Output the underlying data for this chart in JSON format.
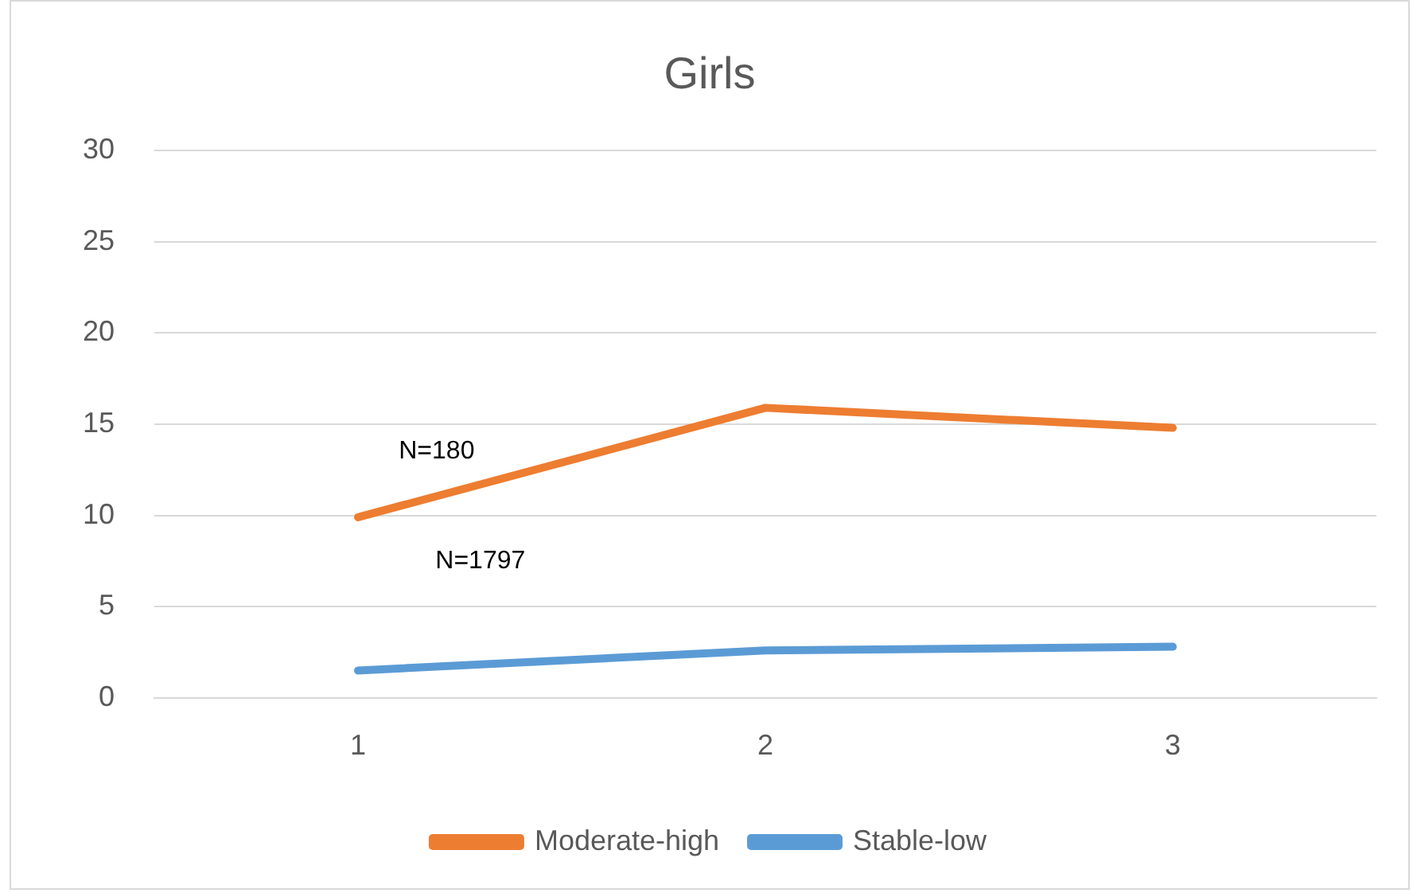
{
  "chart_data": {
    "type": "line",
    "title": "Girls",
    "categories": [
      "1",
      "2",
      "3"
    ],
    "series": [
      {
        "name": "Moderate-high",
        "color": "#ed7d31",
        "values": [
          9.9,
          15.9,
          14.8
        ]
      },
      {
        "name": "Stable-low",
        "color": "#5b9bd5",
        "values": [
          1.5,
          2.6,
          2.8
        ]
      }
    ],
    "ylim": [
      0,
      30
    ],
    "yticks": [
      0,
      5,
      10,
      15,
      20,
      25,
      30
    ],
    "grid": "y",
    "legend": "bottom",
    "marker": "none",
    "line_style": "solid",
    "annotations": [
      "N=180",
      "N=1797"
    ]
  }
}
